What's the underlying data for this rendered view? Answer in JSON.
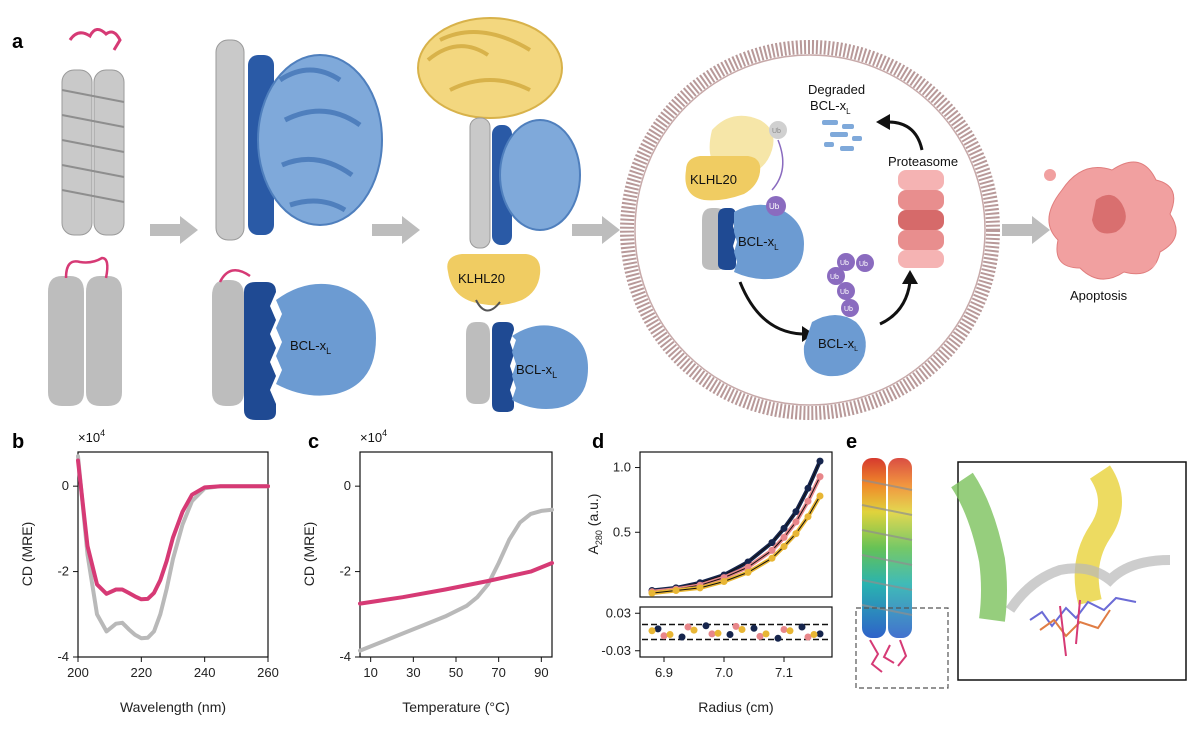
{
  "panels": {
    "a": {
      "label": "a",
      "klhl20_label": "KLHL20",
      "bclxl_label": "BCL-x",
      "bclxl_sub": "L",
      "ub_label": "Ub",
      "degraded_label_1": "Degraded",
      "degraded_label_2": "BCL-x",
      "proteasome_label": "Proteasome",
      "apoptosis_label": "Apoptosis"
    },
    "b": {
      "label": "b",
      "exponent_label": "×10",
      "exponent_sup": "4"
    },
    "c": {
      "label": "c",
      "exponent_label": "×10",
      "exponent_sup": "4"
    },
    "d": {
      "label": "d"
    },
    "e": {
      "label": "e"
    }
  },
  "colors": {
    "magenta": "#d63a75",
    "gray": "#b9b9b9",
    "light_blue": "#6c9bd2",
    "dark_blue": "#1f4a93",
    "gold": "#f0cc62",
    "purple": "#8a6bbf",
    "salmon": "#e8868a",
    "navy": "#16254d",
    "yellow_dots": "#e8b634"
  },
  "chart_data": [
    {
      "id": "b",
      "type": "line",
      "title": "",
      "xlabel": "Wavelength (nm)",
      "ylabel": "CD (MRE)",
      "y_multiplier": "×10^4",
      "xlim": [
        200,
        260
      ],
      "ylim": [
        -4,
        0.8
      ],
      "xticks": [
        200,
        220,
        240,
        260
      ],
      "yticks": [
        0,
        -2,
        -4
      ],
      "series": [
        {
          "color": "#b9b9b9",
          "x": [
            200,
            203,
            206,
            209,
            212,
            214,
            216,
            218,
            220,
            222,
            224,
            226,
            228,
            230,
            233,
            236,
            240,
            245,
            250,
            260
          ],
          "y": [
            0.7,
            -1.6,
            -3.0,
            -3.4,
            -3.22,
            -3.2,
            -3.35,
            -3.48,
            -3.56,
            -3.55,
            -3.4,
            -3.0,
            -2.4,
            -1.7,
            -0.9,
            -0.35,
            -0.05,
            0,
            0,
            0
          ]
        },
        {
          "color": "#d63a75",
          "x": [
            200,
            203,
            206,
            209,
            212,
            214,
            216,
            218,
            220,
            222,
            224,
            226,
            228,
            230,
            233,
            236,
            240,
            245,
            250,
            260
          ],
          "y": [
            0.6,
            -1.4,
            -2.3,
            -2.52,
            -2.42,
            -2.42,
            -2.5,
            -2.58,
            -2.65,
            -2.64,
            -2.5,
            -2.2,
            -1.75,
            -1.2,
            -0.6,
            -0.2,
            -0.03,
            0,
            0,
            0
          ]
        }
      ]
    },
    {
      "id": "c",
      "type": "line",
      "title": "",
      "xlabel": "Temperature (°C)",
      "ylabel": "CD (MRE)",
      "y_multiplier": "×10^4",
      "xlim": [
        5,
        95
      ],
      "ylim": [
        -4,
        0.8
      ],
      "xticks": [
        10,
        30,
        50,
        70,
        90
      ],
      "yticks": [
        0,
        -2,
        -4
      ],
      "series": [
        {
          "color": "#b9b9b9",
          "x": [
            5,
            15,
            25,
            35,
            45,
            55,
            60,
            65,
            70,
            75,
            80,
            85,
            90,
            95
          ],
          "y": [
            -3.85,
            -3.65,
            -3.45,
            -3.25,
            -3.05,
            -2.8,
            -2.6,
            -2.3,
            -1.8,
            -1.25,
            -0.85,
            -0.65,
            -0.58,
            -0.55
          ]
        },
        {
          "color": "#d63a75",
          "x": [
            5,
            25,
            45,
            65,
            85,
            95
          ],
          "y": [
            -2.75,
            -2.6,
            -2.42,
            -2.22,
            -2.0,
            -1.8
          ]
        }
      ]
    },
    {
      "id": "d_top",
      "type": "scatter",
      "title": "",
      "xlabel": "Radius (cm)",
      "ylabel": "A280 (a.u.)",
      "ylabel_main": "A",
      "ylabel_sub": "280",
      "ylabel_tail": " (a.u.)",
      "xlim": [
        6.86,
        7.18
      ],
      "ylim": [
        0.0,
        1.12
      ],
      "yticks": [
        0.5,
        1.0
      ],
      "series": [
        {
          "color": "#16254d",
          "x": [
            6.88,
            6.92,
            6.96,
            7.0,
            7.04,
            7.08,
            7.1,
            7.12,
            7.14,
            7.16
          ],
          "y": [
            0.05,
            0.07,
            0.11,
            0.17,
            0.27,
            0.42,
            0.53,
            0.66,
            0.84,
            1.05
          ]
        },
        {
          "color": "#e8868a",
          "x": [
            6.88,
            6.92,
            6.96,
            7.0,
            7.04,
            7.08,
            7.1,
            7.12,
            7.14,
            7.16
          ],
          "y": [
            0.04,
            0.06,
            0.09,
            0.15,
            0.23,
            0.36,
            0.46,
            0.58,
            0.74,
            0.93
          ]
        },
        {
          "color": "#e8b634",
          "x": [
            6.88,
            6.92,
            6.96,
            7.0,
            7.04,
            7.08,
            7.1,
            7.12,
            7.14,
            7.16
          ],
          "y": [
            0.03,
            0.05,
            0.07,
            0.12,
            0.19,
            0.3,
            0.39,
            0.49,
            0.62,
            0.78
          ]
        }
      ]
    },
    {
      "id": "d_bottom",
      "type": "scatter",
      "title": "",
      "xlabel": "Radius (cm)",
      "ylabel": "",
      "xlim": [
        6.86,
        7.18
      ],
      "ylim": [
        -0.04,
        0.04
      ],
      "xticks": [
        6.9,
        7.0,
        7.1
      ],
      "yticks": [
        0.03,
        -0.03
      ],
      "residuals_band": [
        -0.012,
        0.012
      ],
      "series": [
        {
          "color": "#16254d",
          "x": [
            6.89,
            6.93,
            6.97,
            7.01,
            7.05,
            7.09,
            7.13,
            7.16
          ],
          "y": [
            0.005,
            -0.008,
            0.01,
            -0.004,
            0.006,
            -0.01,
            0.008,
            -0.003
          ]
        },
        {
          "color": "#e8868a",
          "x": [
            6.9,
            6.94,
            6.98,
            7.02,
            7.06,
            7.1,
            7.14
          ],
          "y": [
            -0.006,
            0.008,
            -0.003,
            0.009,
            -0.007,
            0.004,
            -0.008
          ]
        },
        {
          "color": "#e8b634",
          "x": [
            6.88,
            6.91,
            6.95,
            6.99,
            7.03,
            7.07,
            7.11,
            7.15
          ],
          "y": [
            0.002,
            -0.004,
            0.003,
            -0.002,
            0.004,
            -0.003,
            0.002,
            -0.004
          ]
        }
      ]
    }
  ]
}
